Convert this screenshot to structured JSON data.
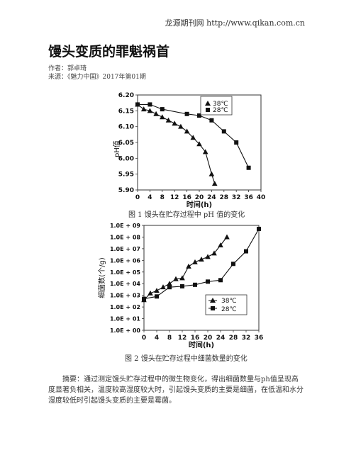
{
  "header": {
    "site": "龙源期刊网 http://www.qikan.com.cn"
  },
  "article": {
    "title": "馒头变质的罪魁祸首",
    "author": "作者：郭卓琦",
    "source": "来源：《魅力中国》2017年第01期",
    "abstract": "摘要：通过测定馒头贮存过程中的微生物变化，得出细菌数量与ph值呈现高度显著负相关，温度较高湿度较大时，引起馒头变质的主要是细菌，在低温和水分湿度较低时引起馒头变质的主要是霉菌。"
  },
  "colors": {
    "ink": "#111111",
    "frame": "#333333"
  },
  "chart_data": [
    {
      "type": "line",
      "caption": "图 1  馒头在贮存过程中 pH 值的变化",
      "xlabel": "时间(h)",
      "ylabel": "pH值",
      "xlim": [
        0,
        40
      ],
      "ylim": [
        5.9,
        6.2
      ],
      "xticks": [
        "0",
        "4",
        "8",
        "12",
        "16",
        "20",
        "24",
        "28",
        "32",
        "36",
        "40"
      ],
      "yticks": [
        "6.20",
        "6.15",
        "6.10",
        "6.05",
        "6.00",
        "5.95",
        "5.90"
      ],
      "legend_position": "top-right",
      "series": [
        {
          "name": "38℃",
          "marker": "triangle",
          "points": [
            [
              0,
              6.17
            ],
            [
              2,
              6.155
            ],
            [
              4,
              6.15
            ],
            [
              6,
              6.14
            ],
            [
              8,
              6.13
            ],
            [
              10,
              6.12
            ],
            [
              12,
              6.11
            ],
            [
              14,
              6.1
            ],
            [
              16,
              6.085
            ],
            [
              18,
              6.065
            ],
            [
              20,
              6.045
            ],
            [
              22,
              6.02
            ],
            [
              24,
              5.95
            ],
            [
              25,
              5.92
            ]
          ]
        },
        {
          "name": "28℃",
          "marker": "square",
          "points": [
            [
              0,
              6.17
            ],
            [
              4,
              6.17
            ],
            [
              8,
              6.155
            ],
            [
              16,
              6.14
            ],
            [
              20,
              6.135
            ],
            [
              24,
              6.12
            ],
            [
              28,
              6.085
            ],
            [
              32,
              6.05
            ],
            [
              36,
              5.97
            ]
          ]
        }
      ]
    },
    {
      "type": "line",
      "caption": "图 2  馒头在贮存过程中细菌数量的变化",
      "xlabel": "时间(h)",
      "ylabel": "细菌数(个/g)",
      "scale": "log",
      "xlim": [
        0,
        36
      ],
      "ylim": [
        1,
        1000000000
      ],
      "xticks": [
        "0",
        "4",
        "8",
        "12",
        "16",
        "20",
        "24",
        "28",
        "32",
        "36"
      ],
      "yticks": [
        "1.0E + 09",
        "1.0E + 08",
        "1.0E + 07",
        "1.0E + 06",
        "1.0E + 05",
        "1.0E + 04",
        "1.0E + 03",
        "1.0E + 02",
        "1.0E + 01",
        "1.0E + 00"
      ],
      "legend_position": "bottom-right",
      "series": [
        {
          "name": "38℃",
          "marker": "triangle",
          "points": [
            [
              0,
              400
            ],
            [
              2,
              1500
            ],
            [
              4,
              2500
            ],
            [
              6,
              5000
            ],
            [
              8,
              10000
            ],
            [
              10,
              25000
            ],
            [
              12,
              30000
            ],
            [
              14,
              300000
            ],
            [
              16,
              700000
            ],
            [
              18,
              1200000
            ],
            [
              20,
              2000000
            ],
            [
              22,
              4000000
            ],
            [
              24,
              20000000
            ],
            [
              26,
              100000000
            ]
          ]
        },
        {
          "name": "28℃",
          "marker": "square",
          "points": [
            [
              0,
              500
            ],
            [
              4,
              800
            ],
            [
              8,
              5000
            ],
            [
              12,
              6000
            ],
            [
              16,
              8000
            ],
            [
              20,
              15000
            ],
            [
              24,
              20000
            ],
            [
              28,
              500000
            ],
            [
              32,
              6000000
            ],
            [
              36,
              500000000
            ]
          ]
        }
      ]
    }
  ]
}
